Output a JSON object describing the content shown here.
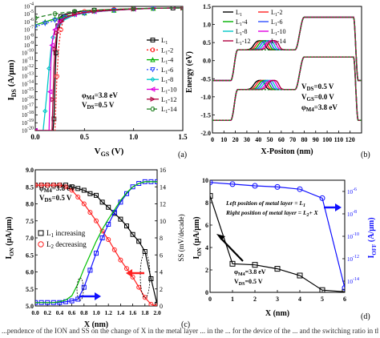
{
  "chart_data": [
    {
      "panel": "a",
      "type": "line",
      "xlabel": "V GS (V)",
      "xlabel_main": "V",
      "xlabel_sub": "GS",
      "xlabel_unit": " (V)",
      "ylabel_main": "I",
      "ylabel_sub": "DS",
      "ylabel_unit": " (A/μm)",
      "xlim": [
        0,
        1.5
      ],
      "ylim_exp": [
        -20,
        -4
      ],
      "y_scale": "log",
      "x_ticks": [
        "0.0",
        "0.5",
        "1.0",
        "1.5"
      ],
      "y_tick_exps": [
        -4,
        -5,
        -6,
        -7,
        -8,
        -9,
        -10,
        -11,
        -12,
        -13,
        -14,
        -15,
        -16,
        -17,
        -18,
        -19,
        -20
      ],
      "annotations": [
        "φM4=3.8 eV",
        "VDS=0.5 V"
      ],
      "legend_position": "right",
      "panel_label": "(a)",
      "series": [
        {
          "name": "L1",
          "name_sub": "1",
          "color": "#000000",
          "marker": "square",
          "dash": "",
          "x": [
            0,
            0.18,
            0.19,
            0.2,
            0.21,
            0.22,
            0.23,
            0.24,
            0.26,
            0.3,
            0.4,
            0.5,
            0.6,
            0.8,
            1.0,
            1.2,
            1.4,
            1.5
          ],
          "y_exp": [
            -20,
            -20,
            -18.5,
            -14,
            -10,
            -8,
            -6.5,
            -5.8,
            -5.3,
            -5.0,
            -4.75,
            -4.6,
            -4.5,
            -4.4,
            -4.3,
            -4.25,
            -4.2,
            -4.2
          ]
        },
        {
          "name": "L1-2",
          "name_sub": "1",
          "name_suffix": "-2",
          "color": "#ff2020",
          "marker": "circle",
          "dash": "2,2",
          "x": [
            0,
            0.2,
            0.22,
            0.24,
            0.26,
            0.28,
            0.32,
            0.4,
            0.5,
            0.6,
            0.8,
            1.0,
            1.2,
            1.5
          ],
          "y_exp": [
            -20,
            -20,
            -13,
            -9,
            -7,
            -6,
            -5.3,
            -4.9,
            -4.65,
            -4.5,
            -4.38,
            -4.3,
            -4.25,
            -4.2
          ]
        },
        {
          "name": "L1-4",
          "name_sub": "1",
          "name_suffix": "-4",
          "color": "#00b000",
          "marker": "triangle",
          "dash": "",
          "x": [
            0,
            0.05,
            0.1,
            0.15,
            0.2,
            0.25,
            0.3,
            0.4,
            0.5,
            0.6,
            0.8,
            1.0,
            1.2,
            1.5
          ],
          "y_exp": [
            -6.4,
            -6.2,
            -6.0,
            -5.8,
            -5.6,
            -5.45,
            -5.3,
            -5.05,
            -4.85,
            -4.7,
            -4.5,
            -4.35,
            -4.25,
            -4.2
          ]
        },
        {
          "name": "L1-6",
          "name_sub": "1",
          "name_suffix": "-6",
          "color": "#3050ff",
          "marker": "triangle-down",
          "dash": "2,2",
          "x": [
            0,
            0.05,
            0.1,
            0.15,
            0.2,
            0.25,
            0.3,
            0.4,
            0.5,
            0.6,
            0.8,
            1.0,
            1.2,
            1.5
          ],
          "y_exp": [
            -6.6,
            -6.4,
            -6.2,
            -6.0,
            -5.8,
            -5.6,
            -5.4,
            -5.1,
            -4.9,
            -4.72,
            -4.5,
            -4.35,
            -4.25,
            -4.2
          ]
        },
        {
          "name": "L1-8",
          "name_sub": "1",
          "name_suffix": "-8",
          "color": "#00c8c8",
          "marker": "diamond",
          "dash": "",
          "x": [
            0,
            0.08,
            0.1,
            0.12,
            0.14,
            0.16,
            0.18,
            0.2,
            0.25,
            0.3,
            0.4,
            0.5,
            0.6,
            0.8,
            1.0,
            1.2,
            1.5
          ],
          "y_exp": [
            -20,
            -20,
            -17.5,
            -15,
            -12,
            -9.5,
            -8.0,
            -7.0,
            -6.2,
            -5.7,
            -5.1,
            -4.85,
            -4.68,
            -4.5,
            -4.35,
            -4.25,
            -4.2
          ]
        },
        {
          "name": "L1-10",
          "name_sub": "1",
          "name_suffix": "-10",
          "color": "#e000e0",
          "marker": "triangle-left",
          "dash": "",
          "x": [
            0,
            0.14,
            0.15,
            0.16,
            0.17,
            0.18,
            0.2,
            0.22,
            0.25,
            0.3,
            0.4,
            0.5,
            0.6,
            0.8,
            1.0,
            1.2,
            1.5
          ],
          "y_exp": [
            -20,
            -20,
            -15,
            -11,
            -9,
            -8.0,
            -7.0,
            -6.4,
            -5.9,
            -5.5,
            -5.05,
            -4.82,
            -4.66,
            -4.48,
            -4.35,
            -4.25,
            -4.2
          ]
        },
        {
          "name": "L1-12",
          "name_sub": "1",
          "name_suffix": "-12",
          "color": "#b00040",
          "marker": "triangle-right",
          "dash": "",
          "x": [
            0,
            0.17,
            0.18,
            0.19,
            0.2,
            0.21,
            0.22,
            0.24,
            0.27,
            0.3,
            0.4,
            0.5,
            0.6,
            0.8,
            1.0,
            1.2,
            1.5
          ],
          "y_exp": [
            -20,
            -20,
            -16,
            -12,
            -9.5,
            -8.2,
            -7.4,
            -6.5,
            -5.9,
            -5.5,
            -5.0,
            -4.8,
            -4.64,
            -4.47,
            -4.34,
            -4.25,
            -4.2
          ]
        },
        {
          "name": "L1-14",
          "name_sub": "1",
          "name_suffix": "-14",
          "color": "#208020",
          "marker": "hexagon",
          "dash": "5,3",
          "x": [
            0,
            0.1,
            0.2,
            0.3,
            0.4,
            0.5,
            0.6,
            0.8,
            1.0,
            1.2,
            1.5
          ],
          "y_exp": [
            -5.5,
            -5.2,
            -4.95,
            -4.78,
            -4.66,
            -4.56,
            -4.48,
            -4.38,
            -4.3,
            -4.24,
            -4.2
          ]
        }
      ]
    },
    {
      "panel": "b",
      "type": "line",
      "xlabel": "X-Positon (nm)",
      "ylabel": "Energy (eV)",
      "xlim": [
        0,
        130
      ],
      "ylim": [
        -2.0,
        1.5
      ],
      "x_ticks": [
        0,
        10,
        20,
        30,
        40,
        50,
        60,
        70,
        80,
        90,
        100,
        110,
        120
      ],
      "y_ticks": [
        "1.5",
        "1.0",
        "0.5",
        "0.0",
        "-0.5",
        "-1.0",
        "-1.5",
        "-2.0"
      ],
      "annotations": [
        "VDS=0.5 V",
        "VGS=0.0 V",
        "φM4=3.8 eV"
      ],
      "legend_position": "top",
      "panel_label": "(b)",
      "series": [
        {
          "name": "L1",
          "name_sub": "1",
          "color": "#000000",
          "dash": "",
          "bump_center": 46
        },
        {
          "name": "L1-2",
          "name_sub": "1",
          "name_suffix": "-2",
          "color": "#ff2020",
          "dash": "",
          "bump_center": 48
        },
        {
          "name": "L1-4",
          "name_sub": "1",
          "name_suffix": "-4",
          "color": "#00b000",
          "dash": "",
          "bump_center": 50
        },
        {
          "name": "L1-6",
          "name_sub": "1",
          "name_suffix": "-6",
          "color": "#3050ff",
          "dash": "",
          "bump_center": 52
        },
        {
          "name": "L1-8",
          "name_sub": "1",
          "name_suffix": "-8",
          "color": "#00c8c8",
          "dash": "",
          "bump_center": 54
        },
        {
          "name": "L1-10",
          "name_sub": "1",
          "name_suffix": "-10",
          "color": "#e000e0",
          "dash": "",
          "bump_center": 56
        },
        {
          "name": "L1-12",
          "name_sub": "1",
          "name_suffix": "-12",
          "color": "#b00040",
          "dash": "",
          "bump_center": 58
        },
        {
          "name": "L1-14",
          "name_sub": "1",
          "name_suffix": "-14",
          "color": "#208020",
          "dash": "2,2",
          "bump_center": 0
        }
      ],
      "conduction_band": {
        "source_level": -0.55,
        "channel_level": 0.3,
        "drain_level": 1.2,
        "bump_peak": 0.55
      },
      "valence_band": {
        "source_level": -1.65,
        "channel_level": -0.8,
        "drain_level": 0.1,
        "bump_peak": -0.55
      }
    },
    {
      "panel": "c",
      "type": "line",
      "xlabel": "X (nm)",
      "ylabel_left_main": "I",
      "ylabel_left_sub": "ON",
      "ylabel_left_unit": " (μA/μm)",
      "ylabel_right": "SS (mV/decade)",
      "xlim": [
        0,
        2.0
      ],
      "ylim_left": [
        5.0,
        9.0
      ],
      "ylim_right": [
        0,
        16
      ],
      "x_ticks": [
        "0.0",
        "0.2",
        "0.4",
        "0.6",
        "0.8",
        "1.0",
        "1.2",
        "1.4",
        "1.6",
        "1.8",
        "2.0"
      ],
      "y_ticks_left": [
        "5.0",
        "5.5",
        "6.0",
        "6.5",
        "7.0",
        "7.5",
        "8.0",
        "8.5",
        "9.0"
      ],
      "y_ticks_right": [
        0,
        2,
        4,
        6,
        8,
        10,
        12,
        14,
        16
      ],
      "annotations": [
        "φM4=3.8 eV",
        "VDS=0.5 V"
      ],
      "legend": [
        "L1 increasing",
        "L2 decreasing"
      ],
      "legend_position": "center-left",
      "panel_label": "(c)",
      "series": [
        {
          "name": "ION L1 increasing",
          "axis": "left",
          "color": "#000000",
          "marker": "square",
          "x": [
            0,
            0.1,
            0.2,
            0.3,
            0.4,
            0.5,
            0.6,
            0.7,
            0.8,
            0.9,
            1.0,
            1.1,
            1.2,
            1.3,
            1.4,
            1.5,
            1.6,
            1.7,
            1.8,
            1.9,
            2.0
          ],
          "y": [
            8.55,
            8.55,
            8.55,
            8.55,
            8.55,
            8.55,
            8.5,
            8.45,
            8.4,
            8.3,
            8.25,
            8.05,
            7.9,
            7.72,
            7.55,
            7.35,
            7.1,
            6.9,
            6.6,
            5.8,
            5.05
          ]
        },
        {
          "name": "ION L2 decreasing",
          "axis": "left",
          "color": "#ff2020",
          "marker": "circle",
          "x": [
            0,
            0.1,
            0.2,
            0.3,
            0.4,
            0.5,
            0.6,
            0.7,
            0.8,
            0.9,
            1.0,
            1.1,
            1.2,
            1.3,
            1.4,
            1.5,
            1.6,
            1.7,
            1.8,
            1.9,
            2.0
          ],
          "y": [
            8.55,
            8.55,
            8.55,
            8.55,
            8.55,
            8.5,
            8.4,
            8.2,
            8.0,
            7.75,
            7.5,
            7.2,
            6.95,
            6.65,
            6.35,
            6.1,
            5.85,
            5.55,
            5.25,
            5.05,
            5.0
          ]
        },
        {
          "name": "SS L1 increasing",
          "axis": "right",
          "color": "#1010ff",
          "marker": "square",
          "x": [
            0,
            0.1,
            0.2,
            0.3,
            0.4,
            0.5,
            0.6,
            0.7,
            0.8,
            0.9,
            1.0,
            1.1,
            1.2,
            1.3,
            1.4,
            1.5,
            1.6,
            1.7,
            1.8,
            1.9,
            2.0
          ],
          "y": [
            0.4,
            0.4,
            0.4,
            0.4,
            0.4,
            0.5,
            0.6,
            0.8,
            2.2,
            4.2,
            6.2,
            8.0,
            9.6,
            11.0,
            12.2,
            13.2,
            14.0,
            14.4,
            14.6,
            14.6,
            14.6
          ]
        },
        {
          "name": "SS L2 decreasing",
          "axis": "right",
          "color": "#00c000",
          "marker": "",
          "x": [
            0,
            0.1,
            0.2,
            0.3,
            0.4,
            0.5,
            0.6,
            0.7,
            0.8,
            0.9,
            1.0,
            1.1,
            1.2,
            1.3,
            1.4,
            1.5,
            1.6,
            1.7,
            1.8,
            1.9,
            2.0
          ],
          "y": [
            0.4,
            0.4,
            0.4,
            0.4,
            0.5,
            0.7,
            1.2,
            2.6,
            4.4,
            6.0,
            7.6,
            9.0,
            10.2,
            11.3,
            12.4,
            13.3,
            14.0,
            14.4,
            14.6,
            14.6,
            14.6
          ]
        }
      ]
    },
    {
      "panel": "d",
      "type": "line",
      "xlabel": "X (nm)",
      "ylabel_left_main": "I",
      "ylabel_left_sub": "ON",
      "ylabel_left_unit": " (μA/μm)",
      "ylabel_right_main": "I",
      "ylabel_right_sub": "OFF",
      "ylabel_right_unit": " (A/μm)",
      "xlim": [
        0,
        6
      ],
      "ylim_left": [
        0,
        10
      ],
      "y_scale_right": "log",
      "ylim_right_exp": [
        -15,
        -5
      ],
      "x_ticks": [
        0,
        1,
        2,
        3,
        4,
        5,
        6
      ],
      "y_ticks_left": [
        0,
        2,
        4,
        6,
        8,
        10
      ],
      "y_tick_exps_right": [
        -6,
        -8,
        -10,
        -12,
        -14
      ],
      "annotations": [
        "Left position of metal layer = L1",
        "Right position of metal layer = L2+ X",
        "φM4=3.8 eV",
        "VDS=0.5 V"
      ],
      "panel_label": "(d)",
      "series": [
        {
          "name": "ION",
          "axis": "left",
          "color": "#000000",
          "marker": "square",
          "x": [
            0,
            1,
            2,
            3,
            4,
            5,
            6
          ],
          "y": [
            8.6,
            2.55,
            2.45,
            2.1,
            1.5,
            0.2,
            0.05
          ]
        },
        {
          "name": "IOFF",
          "axis": "right",
          "color": "#1010ff",
          "marker": "circle",
          "x": [
            0,
            1,
            2,
            3,
            4,
            5,
            6
          ],
          "y_exp": [
            -5.2,
            -5.35,
            -5.5,
            -5.6,
            -5.8,
            -6.6,
            -14.6
          ]
        }
      ]
    }
  ],
  "panel_a": {
    "annot_phi_main": "φ",
    "annot_phi_sub": "M4",
    "annot_phi_val": "=3.8 eV",
    "annot_vds_main": "V",
    "annot_vds_sub": "DS",
    "annot_vds_val": "=0.5 V"
  },
  "panel_b": {
    "annot_vds_main": "V",
    "annot_vds_sub": "DS",
    "annot_vds_val": "=0.5 V",
    "annot_vgs_main": "V",
    "annot_vgs_sub": "GS",
    "annot_vgs_val": "=0.0 V",
    "annot_phi_main": "φ",
    "annot_phi_sub": "M4",
    "annot_phi_val": "=3.8 eV"
  },
  "panel_c": {
    "annot_phi_main": "φ",
    "annot_phi_sub": "M4",
    "annot_phi_val": "=3.8 eV",
    "annot_vds_main": "V",
    "annot_vds_sub": "DS",
    "annot_vds_val": "=0.5 V",
    "legend_l1_main": "L",
    "legend_l1_sub": "1",
    "legend_l1_text": " increasing",
    "legend_l2_main": "L",
    "legend_l2_sub": "2",
    "legend_l2_text": " decreasing"
  },
  "panel_d": {
    "annot_left": "Left position of metal layer = L",
    "annot_left_sub": "1",
    "annot_right": "Right position of metal layer = L",
    "annot_right_sub": "2",
    "annot_right_tail": "+ X",
    "annot_phi_main": "φ",
    "annot_phi_sub": "M4",
    "annot_phi_val": "=3.8 eV",
    "annot_vds_main": "V",
    "annot_vds_sub": "DS",
    "annot_vds_val": "=0.5 V"
  },
  "caption": "...pendence of the ION and SS on the change of X in the metal layer ... in the ... for the device of the ... and the switching ratio in the ..."
}
